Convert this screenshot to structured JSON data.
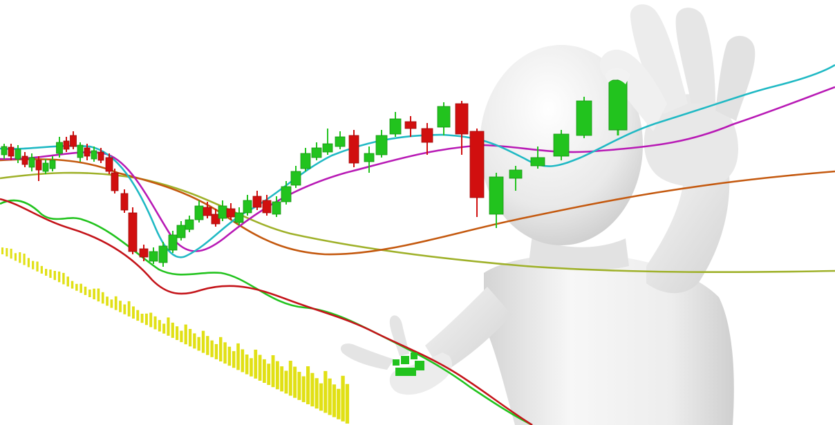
{
  "scene": {
    "subject": "stock-candlestick-chart-with-3d-figure",
    "colors": {
      "background": "#ffffff",
      "bullish_candle": "#22c31e",
      "bearish_candle": "#d10f0f",
      "volume_bar": "#e1e015",
      "ma_cyan": "#20b9c4",
      "ma_magenta": "#b81ab5",
      "ma_orange": "#c4590f",
      "ma_olive": "#9fb12a",
      "indicator_green": "#22c31e",
      "indicator_red": "#c4141a",
      "figure": "#ececec"
    }
  }
}
